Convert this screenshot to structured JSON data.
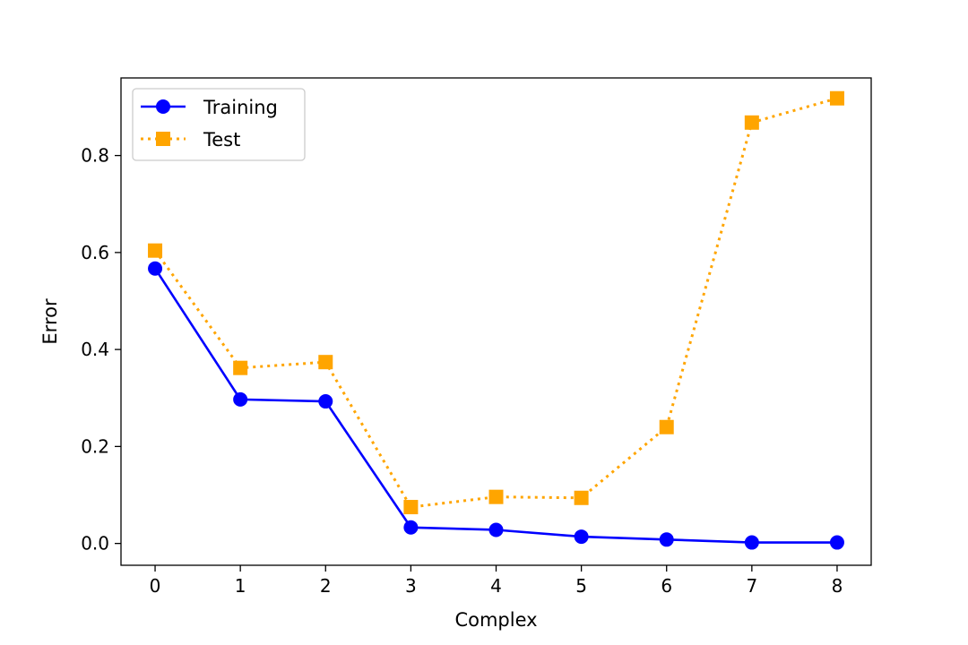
{
  "chart_data": {
    "type": "line",
    "xlabel": "Complex",
    "ylabel": "Error",
    "x": [
      0,
      1,
      2,
      3,
      4,
      5,
      6,
      7,
      8
    ],
    "xlim": [
      -0.4,
      8.4
    ],
    "ylim": [
      -0.045,
      0.96
    ],
    "xticks": [
      "0",
      "1",
      "2",
      "3",
      "4",
      "5",
      "6",
      "7",
      "8"
    ],
    "yticks": [
      "0.0",
      "0.2",
      "0.4",
      "0.6",
      "0.8"
    ],
    "grid": false,
    "legend_position": "top-left",
    "series": [
      {
        "name": "Training",
        "values": [
          0.567,
          0.297,
          0.293,
          0.033,
          0.028,
          0.014,
          0.008,
          0.002,
          0.002
        ],
        "color": "#0000ff",
        "line_style": "solid",
        "marker": "circle"
      },
      {
        "name": "Test",
        "values": [
          0.604,
          0.362,
          0.374,
          0.075,
          0.096,
          0.094,
          0.24,
          0.868,
          0.918
        ],
        "color": "#ffa500",
        "line_style": "dotted",
        "marker": "square"
      }
    ]
  }
}
